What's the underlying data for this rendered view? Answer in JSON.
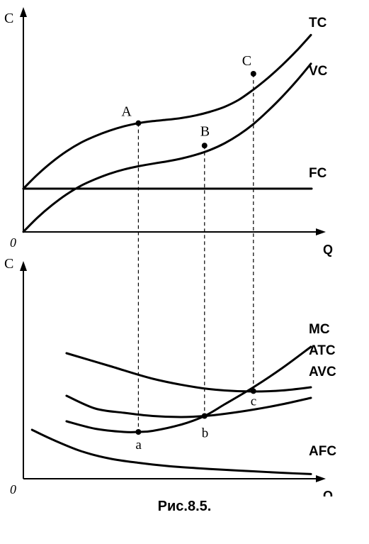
{
  "caption": "Рис.8.5.",
  "chart_data": [
    {
      "type": "line",
      "panel": "top",
      "ylabel": "C",
      "xlabel": "Q",
      "origin_label": "0",
      "series": [
        {
          "name": "TC",
          "x": [
            0,
            0.5,
            1,
            1.5,
            2,
            2.5,
            3,
            3.5,
            4,
            4.5,
            5,
            5.5,
            6,
            6.5,
            7,
            7.5,
            8,
            8.5,
            9,
            9.5,
            10
          ],
          "y": [
            1.5,
            2.0,
            2.43,
            2.8,
            3.1,
            3.33,
            3.52,
            3.67,
            3.78,
            3.85,
            3.9,
            3.96,
            4.05,
            4.18,
            4.35,
            4.6,
            4.95,
            5.35,
            5.8,
            6.3,
            6.85
          ]
        },
        {
          "name": "VC",
          "x": [
            0,
            0.5,
            1,
            1.5,
            2,
            2.5,
            3,
            3.5,
            4,
            4.5,
            5,
            5.5,
            6,
            6.5,
            7,
            7.5,
            8,
            8.5,
            9,
            9.5,
            10
          ],
          "y": [
            0,
            0.5,
            0.93,
            1.3,
            1.6,
            1.83,
            2.02,
            2.17,
            2.28,
            2.37,
            2.45,
            2.55,
            2.68,
            2.85,
            3.08,
            3.38,
            3.75,
            4.2,
            4.7,
            5.25,
            5.85
          ]
        },
        {
          "name": "FC",
          "x": [
            0,
            10
          ],
          "y": [
            1.5,
            1.5
          ]
        }
      ],
      "points": [
        {
          "label": "A",
          "x": 4,
          "y": 3.78
        },
        {
          "label": "B",
          "x": 6.3,
          "y": 3.0
        },
        {
          "label": "C",
          "x": 8,
          "y": 5.5
        }
      ]
    },
    {
      "type": "line",
      "panel": "bottom",
      "ylabel": "C",
      "xlabel": "Q",
      "origin_label": "0",
      "series": [
        {
          "name": "MC",
          "x": [
            1.5,
            2.5,
            3.5,
            4,
            4.5,
            5.5,
            6.3,
            7,
            8,
            9,
            10
          ],
          "y": [
            2.7,
            2.35,
            2.2,
            2.2,
            2.25,
            2.55,
            2.95,
            3.5,
            4.3,
            5.2,
            6.2
          ]
        },
        {
          "name": "ATC",
          "x": [
            1.5,
            3,
            4.5,
            6,
            7,
            8,
            9,
            10
          ],
          "y": [
            5.9,
            5.3,
            4.7,
            4.3,
            4.15,
            4.1,
            4.15,
            4.3
          ]
        },
        {
          "name": "AVC",
          "x": [
            1.5,
            2.5,
            3.5,
            4.5,
            5.5,
            6.3,
            7,
            8,
            9,
            10
          ],
          "y": [
            3.9,
            3.3,
            3.1,
            2.95,
            2.9,
            2.95,
            3.05,
            3.25,
            3.5,
            3.8
          ]
        },
        {
          "name": "AFC",
          "x": [
            0.3,
            1,
            2,
            3,
            4,
            5,
            6,
            7,
            8,
            9,
            10
          ],
          "y": [
            2.3,
            1.85,
            1.3,
            0.95,
            0.75,
            0.6,
            0.5,
            0.42,
            0.35,
            0.28,
            0.22
          ]
        }
      ],
      "points": [
        {
          "label": "a",
          "x": 4,
          "y": 2.2
        },
        {
          "label": "b",
          "x": 6.3,
          "y": 2.95
        },
        {
          "label": "c",
          "x": 8,
          "y": 4.12
        }
      ]
    }
  ]
}
